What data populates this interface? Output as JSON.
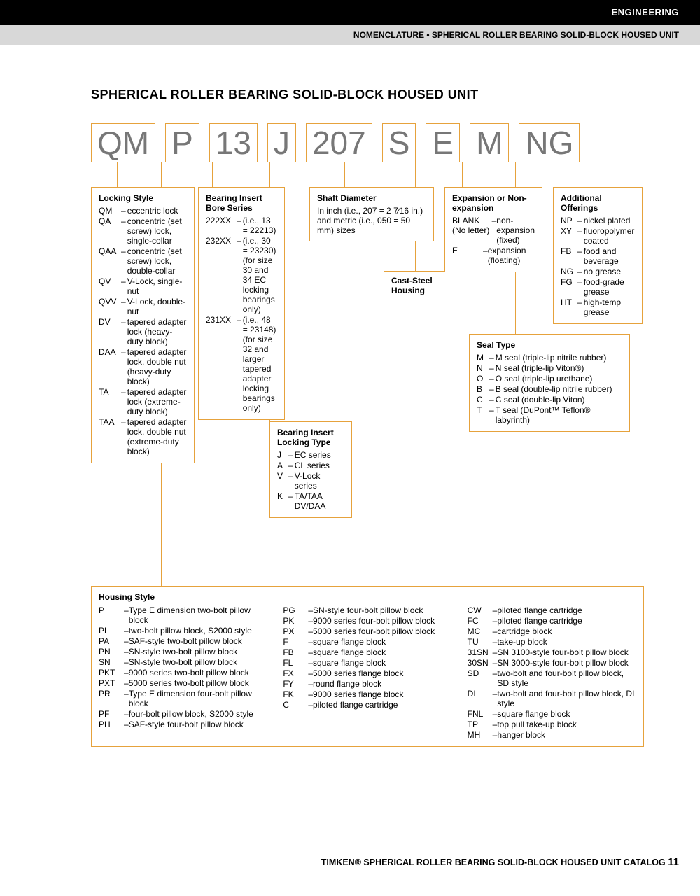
{
  "header": {
    "category": "ENGINEERING",
    "breadcrumb": "NOMENCLATURE • SPHERICAL ROLLER BEARING SOLID-BLOCK HOUSED UNIT"
  },
  "title": "SPHERICAL ROLLER BEARING SOLID-BLOCK HOUSED UNIT",
  "code_boxes": [
    "QM",
    "P",
    "13",
    "J",
    "207",
    "S",
    "E",
    "M",
    "NG"
  ],
  "sections": {
    "locking_style": {
      "title": "Locking Style",
      "items": [
        {
          "code": "QM",
          "desc": "eccentric lock"
        },
        {
          "code": "QA",
          "desc": "concentric (set screw) lock, single-collar"
        },
        {
          "code": "QAA",
          "desc": "concentric (set screw) lock, double-collar"
        },
        {
          "code": "QV",
          "desc": "V-Lock, single-nut"
        },
        {
          "code": "QVV",
          "desc": "V-Lock, double-nut"
        },
        {
          "code": "DV",
          "desc": "tapered adapter lock (heavy-duty block)"
        },
        {
          "code": "DAA",
          "desc": "tapered adapter lock, double nut (heavy-duty block)"
        },
        {
          "code": "TA",
          "desc": "tapered adapter lock (extreme-duty block)"
        },
        {
          "code": "TAA",
          "desc": "tapered adapter lock, double nut (extreme-duty block)"
        }
      ]
    },
    "bearing_insert_bore": {
      "title": "Bearing Insert Bore Series",
      "items": [
        {
          "code": "222XX",
          "desc": "(i.e., 13 = 22213)"
        },
        {
          "code": "232XX",
          "desc": "(i.e., 30 = 23230) (for size 30 and 34 EC locking bearings only)"
        },
        {
          "code": "231XX",
          "desc": "(i.e., 48 = 23148) (for size 32 and larger tapered adapter locking bearings only)"
        }
      ]
    },
    "bearing_insert_locking": {
      "title": "Bearing Insert Locking Type",
      "items": [
        {
          "code": "J",
          "desc": "EC series"
        },
        {
          "code": "A",
          "desc": "CL series"
        },
        {
          "code": "V",
          "desc": "V-Lock series"
        },
        {
          "code": "K",
          "desc": "TA/TAA DV/DAA"
        }
      ]
    },
    "shaft_diameter": {
      "title": "Shaft Diameter",
      "desc": "In inch (i.e., 207 = 2 7⁄16 in.) and metric (i.e., 050 = 50 mm) sizes"
    },
    "cast_steel": {
      "title": "Cast-Steel Housing"
    },
    "expansion": {
      "title": "Expansion or Non-expansion",
      "items": [
        {
          "code": "BLANK (No letter)",
          "desc": "non-expansion (fixed)"
        },
        {
          "code": "E",
          "desc": "expansion (floating)"
        }
      ]
    },
    "seal_type": {
      "title": "Seal Type",
      "items": [
        {
          "code": "M",
          "desc": "M seal (triple-lip nitrile rubber)"
        },
        {
          "code": "N",
          "desc": "N seal (triple-lip Viton®)"
        },
        {
          "code": "O",
          "desc": "O seal (triple-lip urethane)"
        },
        {
          "code": "B",
          "desc": "B seal (double-lip nitrile rubber)"
        },
        {
          "code": "C",
          "desc": "C seal (double-lip Viton)"
        },
        {
          "code": "T",
          "desc": "T seal (DuPont™ Teflon® labyrinth)"
        }
      ]
    },
    "additional_offerings": {
      "title": "Additional Offerings",
      "items": [
        {
          "code": "NP",
          "desc": "nickel plated"
        },
        {
          "code": "XY",
          "desc": "fluoropolymer coated"
        },
        {
          "code": "FB",
          "desc": "food and beverage"
        },
        {
          "code": "NG",
          "desc": "no grease"
        },
        {
          "code": "FG",
          "desc": "food-grade grease"
        },
        {
          "code": "HT",
          "desc": "high-temp grease"
        }
      ]
    },
    "housing_style": {
      "title": "Housing Style",
      "col1": [
        {
          "code": "P",
          "desc": "Type E dimension two-bolt pillow block"
        },
        {
          "code": "PL",
          "desc": "two-bolt pillow block, S2000 style"
        },
        {
          "code": "PA",
          "desc": "SAF-style two-bolt pillow block"
        },
        {
          "code": "PN",
          "desc": "SN-style two-bolt pillow block"
        },
        {
          "code": "SN",
          "desc": "SN-style two-bolt pillow block"
        },
        {
          "code": "PKT",
          "desc": "9000 series two-bolt pillow block"
        },
        {
          "code": "PXT",
          "desc": "5000 series two-bolt pillow block"
        },
        {
          "code": "PR",
          "desc": "Type E dimension four-bolt pillow block"
        },
        {
          "code": "PF",
          "desc": "four-bolt pillow block, S2000 style"
        },
        {
          "code": "PH",
          "desc": "SAF-style four-bolt pillow block"
        }
      ],
      "col2": [
        {
          "code": "PG",
          "desc": "SN-style four-bolt pillow block"
        },
        {
          "code": "PK",
          "desc": "9000 series four-bolt pillow block"
        },
        {
          "code": "PX",
          "desc": "5000 series four-bolt pillow block"
        },
        {
          "code": "F",
          "desc": "square flange block"
        },
        {
          "code": "FB",
          "desc": "square flange block"
        },
        {
          "code": "FL",
          "desc": "square flange block"
        },
        {
          "code": "FX",
          "desc": "5000 series flange block"
        },
        {
          "code": "FY",
          "desc": "round flange block"
        },
        {
          "code": "FK",
          "desc": "9000 series flange block"
        },
        {
          "code": "C",
          "desc": "piloted flange cartridge"
        }
      ],
      "col3": [
        {
          "code": "CW",
          "desc": "piloted flange cartridge"
        },
        {
          "code": "FC",
          "desc": "piloted flange cartridge"
        },
        {
          "code": "MC",
          "desc": "cartridge block"
        },
        {
          "code": "TU",
          "desc": "take-up block"
        },
        {
          "code": "31SN",
          "desc": "SN 3100-style four-bolt pillow block"
        },
        {
          "code": "30SN",
          "desc": "SN 3000-style four-bolt pillow block"
        },
        {
          "code": "SD",
          "desc": "two-bolt and four-bolt pillow block, SD style"
        },
        {
          "code": "DI",
          "desc": "two-bolt and four-bolt pillow block, DI style"
        },
        {
          "code": "FNL",
          "desc": "square flange block"
        },
        {
          "code": "TP",
          "desc": "top pull take-up block"
        },
        {
          "code": "MH",
          "desc": "hanger block"
        }
      ]
    }
  },
  "footer": {
    "text": "TIMKEN® SPHERICAL ROLLER BEARING SOLID-BLOCK HOUSED UNIT CATALOG",
    "page": "11"
  },
  "colors": {
    "border": "#e6a23c",
    "code_text": "#777777",
    "black": "#000000",
    "gray_bar": "#d8d8d8"
  }
}
